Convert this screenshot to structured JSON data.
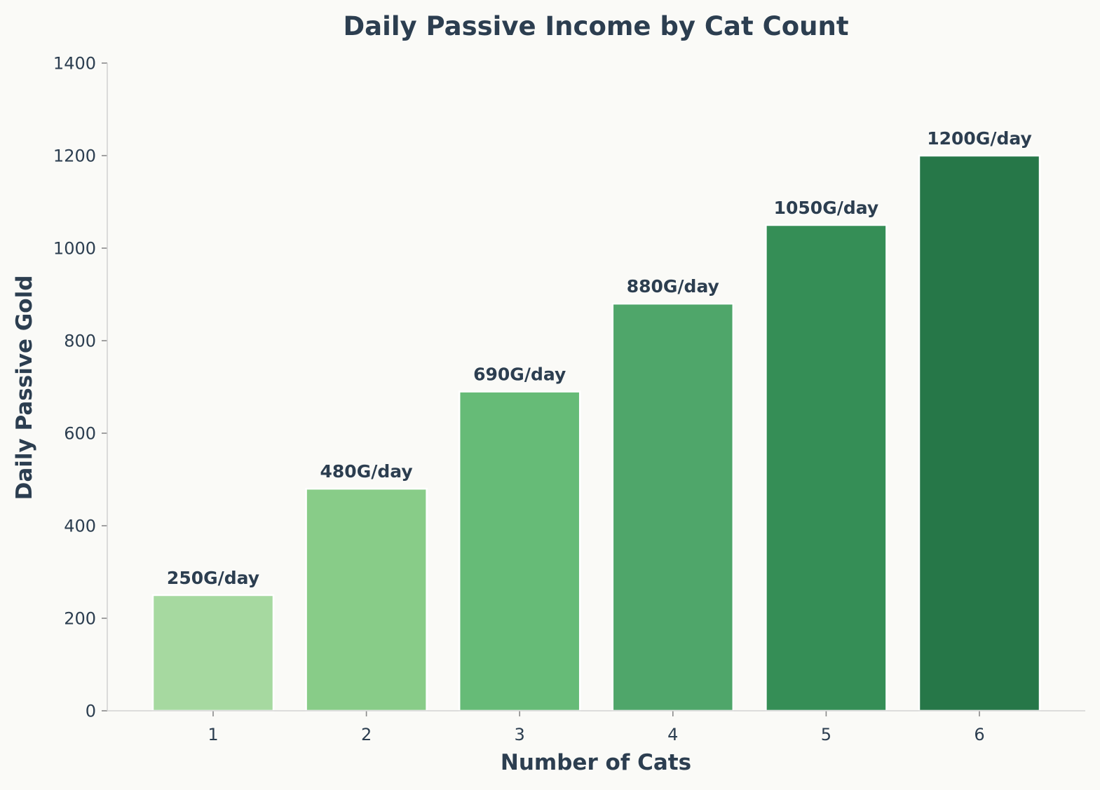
{
  "chart_data": {
    "type": "bar",
    "title": "Daily Passive Income by Cat Count",
    "xlabel": "Number of Cats",
    "ylabel": "Daily Passive Gold",
    "categories": [
      "1",
      "2",
      "3",
      "4",
      "5",
      "6"
    ],
    "values": [
      250,
      480,
      690,
      880,
      1050,
      1200
    ],
    "data_labels": [
      "250G/day",
      "480G/day",
      "690G/day",
      "880G/day",
      "1050G/day",
      "1200G/day"
    ],
    "ylim": [
      0,
      1400
    ],
    "yticks": [
      0,
      200,
      400,
      600,
      800,
      1000,
      1200,
      1400
    ],
    "ytick_labels": [
      "0",
      "200",
      "400",
      "600",
      "800",
      "1000",
      "1200",
      "1400"
    ],
    "colors": [
      "#a6d9a0",
      "#88cc88",
      "#66bb77",
      "#4fa66a",
      "#358e56",
      "#267748"
    ],
    "grid": false,
    "legend": "none"
  }
}
